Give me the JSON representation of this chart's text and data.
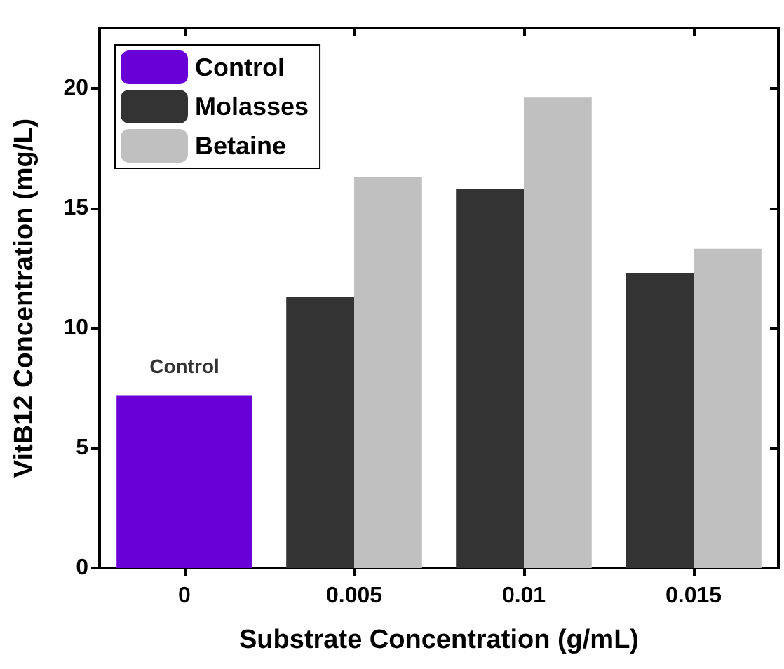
{
  "chart_data": {
    "type": "bar",
    "xlabel": "Substrate Concentration (g/mL)",
    "ylabel": "VitB12 Concentration (mg/L)",
    "categories": [
      "0",
      "0.005",
      "0.01",
      "0.015"
    ],
    "series": [
      {
        "name": "Control",
        "color": "#6a00d8",
        "values": [
          7.2,
          null,
          null,
          null
        ]
      },
      {
        "name": "Molasses",
        "color": "#333333",
        "values": [
          null,
          11.3,
          15.8,
          12.3
        ]
      },
      {
        "name": "Betaine",
        "color": "#c0c0c0",
        "values": [
          null,
          16.3,
          19.6,
          13.3
        ]
      }
    ],
    "annotations": [
      {
        "text": "Control",
        "x": "0",
        "y": 7.2
      }
    ],
    "ylim": [
      0,
      22.5
    ],
    "yticks": [
      0,
      5,
      10,
      15,
      20
    ],
    "grid": false,
    "legend": "top left"
  }
}
